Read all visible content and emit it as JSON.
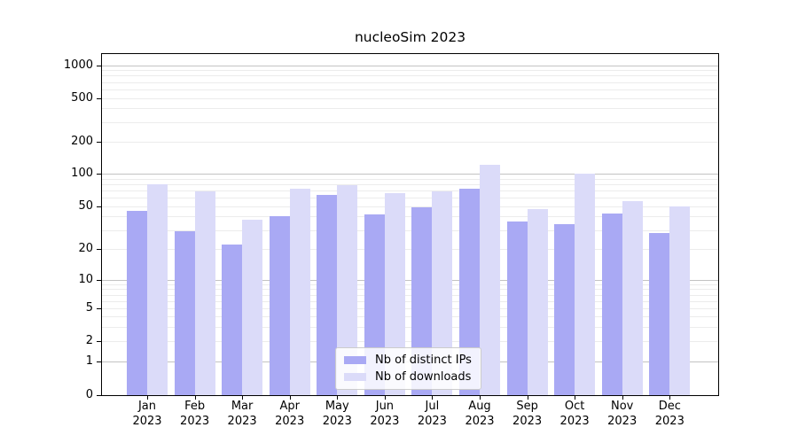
{
  "chart_data": {
    "type": "bar",
    "title": "nucleoSim 2023",
    "categories": [
      {
        "month": "Jan",
        "year": "2023"
      },
      {
        "month": "Feb",
        "year": "2023"
      },
      {
        "month": "Mar",
        "year": "2023"
      },
      {
        "month": "Apr",
        "year": "2023"
      },
      {
        "month": "May",
        "year": "2023"
      },
      {
        "month": "Jun",
        "year": "2023"
      },
      {
        "month": "Jul",
        "year": "2023"
      },
      {
        "month": "Aug",
        "year": "2023"
      },
      {
        "month": "Sep",
        "year": "2023"
      },
      {
        "month": "Oct",
        "year": "2023"
      },
      {
        "month": "Nov",
        "year": "2023"
      },
      {
        "month": "Dec",
        "year": "2023"
      }
    ],
    "series": [
      {
        "name": "Nb of distinct IPs",
        "color": "#a9a9f4",
        "values": [
          45,
          29,
          22,
          40,
          64,
          42,
          49,
          72,
          36,
          34,
          43,
          28
        ]
      },
      {
        "name": "Nb of downloads",
        "color": "#dbdbf9",
        "values": [
          79,
          68,
          37,
          72,
          78,
          66,
          69,
          120,
          47,
          100,
          56,
          50
        ]
      }
    ],
    "y_axis": {
      "ticks": [
        0,
        1,
        2,
        5,
        10,
        20,
        50,
        100,
        200,
        500,
        1000
      ],
      "scale": "symlog-like",
      "ylim": [
        0,
        1300
      ]
    },
    "legend": {
      "position": "lower-center"
    },
    "grid": "horizontal; darker lines at decades, faint minor lines"
  }
}
